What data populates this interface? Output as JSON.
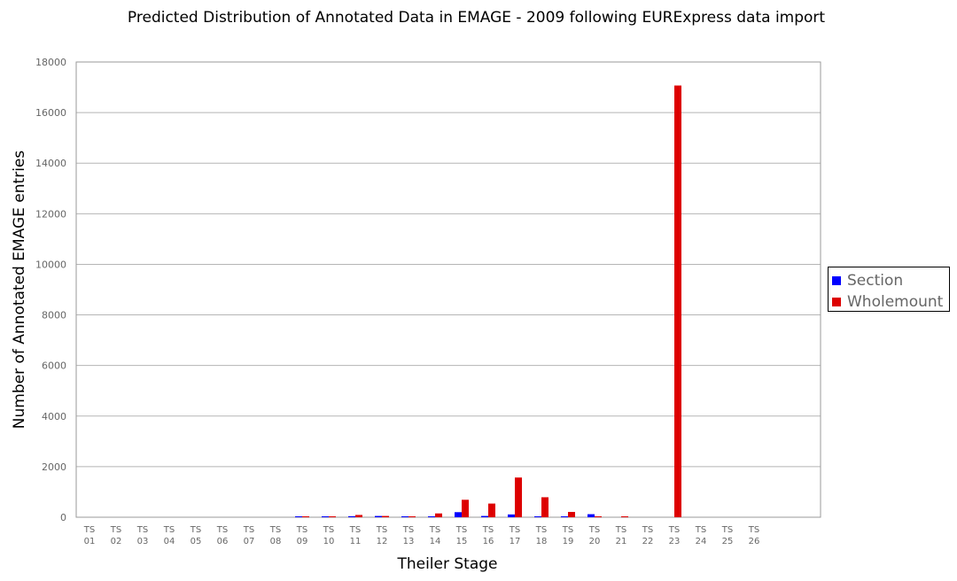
{
  "chart_data": {
    "type": "bar",
    "title": "Predicted Distribution of Annotated Data in EMAGE - 2009 following EURExpress data import",
    "xlabel": "Theiler Stage",
    "ylabel": "Number of Annotated EMAGE entries",
    "ylim": [
      0,
      18000
    ],
    "yticks": [
      0,
      2000,
      4000,
      6000,
      8000,
      10000,
      12000,
      14000,
      16000,
      18000
    ],
    "grid": true,
    "legend_position": "right",
    "categories": [
      [
        "TS",
        "01"
      ],
      [
        "TS",
        "02"
      ],
      [
        "TS",
        "03"
      ],
      [
        "TS",
        "04"
      ],
      [
        "TS",
        "05"
      ],
      [
        "TS",
        "06"
      ],
      [
        "TS",
        "07"
      ],
      [
        "TS",
        "08"
      ],
      [
        "TS",
        "09"
      ],
      [
        "TS",
        "10"
      ],
      [
        "TS",
        "11"
      ],
      [
        "TS",
        "12"
      ],
      [
        "TS",
        "13"
      ],
      [
        "TS",
        "14"
      ],
      [
        "TS",
        "15"
      ],
      [
        "TS",
        "16"
      ],
      [
        "TS",
        "17"
      ],
      [
        "TS",
        "18"
      ],
      [
        "TS",
        "19"
      ],
      [
        "TS",
        "20"
      ],
      [
        "TS",
        "21"
      ],
      [
        "TS",
        "22"
      ],
      [
        "TS",
        "23"
      ],
      [
        "TS",
        "24"
      ],
      [
        "TS",
        "25"
      ],
      [
        "TS",
        "26"
      ],
      [
        "",
        ""
      ],
      [
        "",
        ""
      ]
    ],
    "series": [
      {
        "name": "Section",
        "color": "#0000ff",
        "values": [
          0,
          0,
          0,
          0,
          0,
          0,
          0,
          0,
          10,
          10,
          40,
          50,
          20,
          20,
          200,
          50,
          110,
          20,
          20,
          120,
          0,
          0,
          0,
          0,
          0,
          0,
          0,
          0
        ]
      },
      {
        "name": "Wholemount",
        "color": "#dd0000",
        "values": [
          0,
          0,
          0,
          0,
          0,
          0,
          0,
          0,
          10,
          10,
          90,
          50,
          20,
          150,
          690,
          540,
          1570,
          790,
          210,
          30,
          20,
          0,
          17070,
          0,
          0,
          0,
          0,
          0
        ]
      }
    ]
  }
}
